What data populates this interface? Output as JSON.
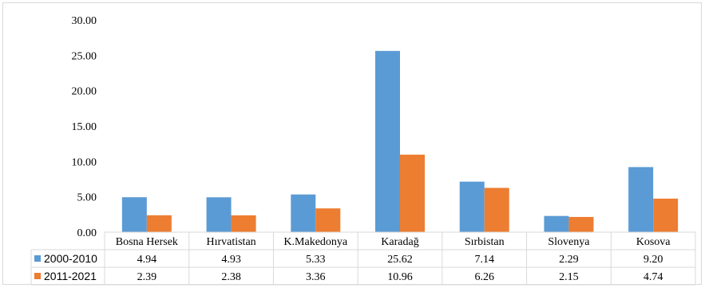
{
  "colors": {
    "series1": "#5b9bd5",
    "series2": "#ed7d31",
    "grid": "#d9d9d9",
    "border": "#bfbfbf"
  },
  "chart_data": {
    "type": "bar",
    "categories": [
      "Bosna Hersek",
      "Hırvatistan",
      "K.Makedonya",
      "Karadağ",
      "Sırbistan",
      "Slovenya",
      "Kosova"
    ],
    "series": [
      {
        "name": "2000-2010",
        "values": [
          4.94,
          4.93,
          5.33,
          25.62,
          7.14,
          2.29,
          9.2
        ],
        "labels": [
          "4.94",
          "4.93",
          "5.33",
          "25.62",
          "7.14",
          "2.29",
          "9.20"
        ]
      },
      {
        "name": "2011-2021",
        "values": [
          2.39,
          2.38,
          3.36,
          10.96,
          6.26,
          2.15,
          4.74
        ],
        "labels": [
          "2.39",
          "2.38",
          "3.36",
          "10.96",
          "6.26",
          "2.15",
          "4.74"
        ]
      }
    ],
    "ylim": [
      0,
      30
    ],
    "yticks": [
      "0.00",
      "5.00",
      "10.00",
      "15.00",
      "20.00",
      "25.00",
      "30.00"
    ],
    "grid": false,
    "legend": "data-table"
  }
}
